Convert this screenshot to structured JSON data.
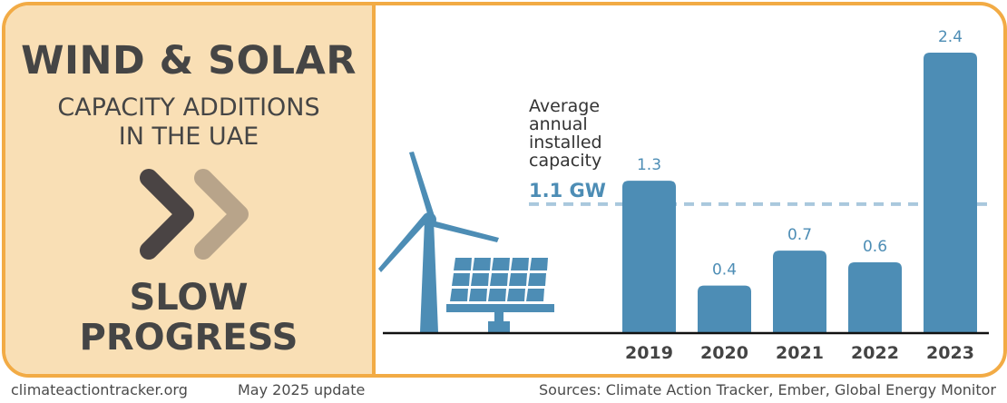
{
  "left_panel": {
    "title": "WIND & SOLAR",
    "subtitle_line1": "CAPACITY ADDITIONS",
    "subtitle_line2": "IN THE UAE",
    "status_line1": "SLOW",
    "status_line2": "PROGRESS",
    "icon": "double-chevron-right-icon"
  },
  "annotation": {
    "line1": "Average",
    "line2": "annual",
    "line3": "installed",
    "line4": "capacity",
    "value_label": "1.1 GW"
  },
  "footer": {
    "website": "climateactiontracker.org",
    "update": "May 2025 update",
    "sources": "Sources: Climate Action Tracker, Ember, Global Energy Monitor"
  },
  "colors": {
    "bar": "#4d8db5",
    "border": "#f2ab45",
    "panel": "#f9dfb5",
    "text_dark": "#454545",
    "average_line": "#a9c8dd"
  },
  "chart_data": {
    "type": "bar",
    "title": "Wind & Solar capacity additions in the UAE",
    "categories": [
      "2019",
      "2020",
      "2021",
      "2022",
      "2023"
    ],
    "values": [
      1.3,
      0.4,
      0.7,
      0.6,
      2.4
    ],
    "value_labels": [
      "1.3",
      "0.4",
      "0.7",
      "0.6",
      "2.4"
    ],
    "unit": "GW",
    "average": 1.1,
    "average_label": "1.1 GW",
    "xlabel": "",
    "ylabel": "",
    "ylim": [
      0,
      2.4
    ],
    "grid": false,
    "legend": "none"
  }
}
